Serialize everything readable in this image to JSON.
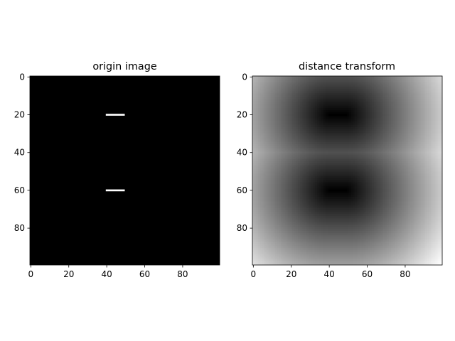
{
  "chart_data": [
    {
      "type": "heatmap",
      "title": "origin image",
      "colormap": "gray",
      "size": [
        100,
        100
      ],
      "xlim": [
        0,
        100
      ],
      "ylim": [
        100,
        0
      ],
      "xticks": [
        0,
        20,
        40,
        60,
        80
      ],
      "yticks": [
        0,
        20,
        40,
        60,
        80
      ],
      "segments": [
        {
          "row": 20,
          "col_start": 40,
          "col_end": 49,
          "value": 1
        },
        {
          "row": 60,
          "col_start": 40,
          "col_end": 49,
          "value": 1
        }
      ],
      "background_value": 0
    },
    {
      "type": "heatmap",
      "title": "distance transform",
      "colormap": "gray",
      "size": [
        100,
        100
      ],
      "xlim": [
        0,
        100
      ],
      "ylim": [
        100,
        0
      ],
      "xticks": [
        0,
        20,
        40,
        60,
        80
      ],
      "yticks": [
        0,
        20,
        40,
        60,
        80
      ],
      "source": "euclidean distance to nearest white pixel of origin image"
    }
  ]
}
